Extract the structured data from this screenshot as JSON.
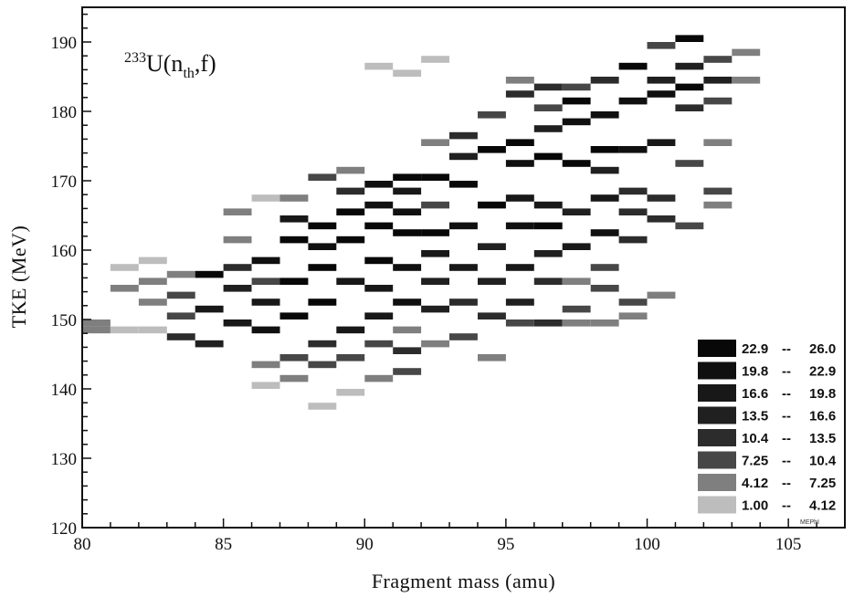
{
  "chart_data": {
    "type": "heatmap",
    "title": "233U(nth,f)",
    "title_parts": {
      "sup": "233",
      "base": "U(n",
      "sub": "th",
      "tail": ",f)"
    },
    "xlabel": "Fragment mass (amu)",
    "ylabel": "TKE (MeV)",
    "xlim": [
      80,
      107
    ],
    "ylim": [
      120,
      195
    ],
    "xticks": [
      80,
      85,
      90,
      95,
      100,
      105
    ],
    "yticks": [
      120,
      130,
      140,
      150,
      160,
      170,
      180,
      190
    ],
    "legend_placement": "bottom-right",
    "legend": [
      {
        "label_lo": "22.9",
        "label_hi": "26.0",
        "color": "#080808"
      },
      {
        "label_lo": "19.8",
        "label_hi": "22.9",
        "color": "#101010"
      },
      {
        "label_lo": "16.6",
        "label_hi": "19.8",
        "color": "#181818"
      },
      {
        "label_lo": "13.5",
        "label_hi": "16.6",
        "color": "#202020"
      },
      {
        "label_lo": "10.4",
        "label_hi": "13.5",
        "color": "#2c2c2c"
      },
      {
        "label_lo": "7.25",
        "label_hi": "10.4",
        "color": "#474747"
      },
      {
        "label_lo": "4.12",
        "label_hi": "7.25",
        "color": "#7f7f7f"
      },
      {
        "label_lo": "1.00",
        "label_hi": "4.12",
        "color": "#bdbdbd"
      }
    ],
    "legend_separator": "--",
    "credit": "MEPhI",
    "cell_width_amu": 1,
    "cell_height_mev": 1,
    "cells": [
      [
        80.5,
        149.5,
        2
      ],
      [
        80.5,
        148.5,
        2
      ],
      [
        81.5,
        148.5,
        1
      ],
      [
        81.5,
        154.5,
        2
      ],
      [
        81.5,
        157.5,
        1
      ],
      [
        82.5,
        148.5,
        1
      ],
      [
        82.5,
        152.5,
        2
      ],
      [
        82.5,
        155.5,
        2
      ],
      [
        82.5,
        158.5,
        1
      ],
      [
        83.5,
        147.5,
        4
      ],
      [
        83.5,
        150.5,
        3
      ],
      [
        83.5,
        153.5,
        3
      ],
      [
        83.5,
        156.5,
        2
      ],
      [
        84.5,
        151.5,
        6
      ],
      [
        84.5,
        156.5,
        8
      ],
      [
        84.5,
        146.5,
        5
      ],
      [
        85.5,
        149.5,
        6
      ],
      [
        85.5,
        154.5,
        5
      ],
      [
        85.5,
        157.5,
        4
      ],
      [
        85.5,
        161.5,
        2
      ],
      [
        85.5,
        165.5,
        2
      ],
      [
        86.5,
        148.5,
        7
      ],
      [
        86.5,
        152.5,
        6
      ],
      [
        86.5,
        158.5,
        7
      ],
      [
        86.5,
        155.5,
        3
      ],
      [
        86.5,
        143.5,
        2
      ],
      [
        86.5,
        140.5,
        1
      ],
      [
        86.5,
        167.5,
        1
      ],
      [
        87.5,
        150.5,
        8
      ],
      [
        87.5,
        155.5,
        8
      ],
      [
        87.5,
        161.5,
        8
      ],
      [
        87.5,
        164.5,
        6
      ],
      [
        87.5,
        144.5,
        3
      ],
      [
        87.5,
        141.5,
        2
      ],
      [
        87.5,
        167.5,
        2
      ],
      [
        88.5,
        152.5,
        8
      ],
      [
        88.5,
        157.5,
        8
      ],
      [
        88.5,
        163.5,
        8
      ],
      [
        88.5,
        160.5,
        7
      ],
      [
        88.5,
        146.5,
        4
      ],
      [
        88.5,
        143.5,
        3
      ],
      [
        88.5,
        170.5,
        3
      ],
      [
        88.5,
        137.5,
        1
      ],
      [
        89.5,
        148.5,
        6
      ],
      [
        89.5,
        155.5,
        6
      ],
      [
        89.5,
        161.5,
        8
      ],
      [
        89.5,
        165.5,
        8
      ],
      [
        89.5,
        168.5,
        4
      ],
      [
        89.5,
        144.5,
        3
      ],
      [
        89.5,
        139.5,
        1
      ],
      [
        89.5,
        171.5,
        2
      ],
      [
        90.5,
        150.5,
        6
      ],
      [
        90.5,
        154.5,
        6
      ],
      [
        90.5,
        158.5,
        8
      ],
      [
        90.5,
        163.5,
        8
      ],
      [
        90.5,
        166.5,
        7
      ],
      [
        90.5,
        169.5,
        7
      ],
      [
        90.5,
        146.5,
        3
      ],
      [
        90.5,
        141.5,
        2
      ],
      [
        90.5,
        186.5,
        1
      ],
      [
        91.5,
        152.5,
        7
      ],
      [
        91.5,
        157.5,
        7
      ],
      [
        91.5,
        162.5,
        8
      ],
      [
        91.5,
        165.5,
        7
      ],
      [
        91.5,
        168.5,
        6
      ],
      [
        91.5,
        170.5,
        8
      ],
      [
        91.5,
        145.5,
        4
      ],
      [
        91.5,
        142.5,
        3
      ],
      [
        91.5,
        148.5,
        2
      ],
      [
        91.5,
        185.5,
        1
      ],
      [
        92.5,
        151.5,
        5
      ],
      [
        92.5,
        155.5,
        5
      ],
      [
        92.5,
        159.5,
        6
      ],
      [
        92.5,
        162.5,
        8
      ],
      [
        92.5,
        170.5,
        8
      ],
      [
        92.5,
        166.5,
        3
      ],
      [
        92.5,
        175.5,
        2
      ],
      [
        92.5,
        146.5,
        2
      ],
      [
        92.5,
        187.5,
        1
      ],
      [
        93.5,
        157.5,
        6
      ],
      [
        93.5,
        163.5,
        7
      ],
      [
        93.5,
        169.5,
        8
      ],
      [
        93.5,
        173.5,
        5
      ],
      [
        93.5,
        176.5,
        4
      ],
      [
        93.5,
        147.5,
        3
      ],
      [
        93.5,
        152.5,
        4
      ],
      [
        94.5,
        150.5,
        4
      ],
      [
        94.5,
        155.5,
        5
      ],
      [
        94.5,
        160.5,
        5
      ],
      [
        94.5,
        166.5,
        8
      ],
      [
        94.5,
        174.5,
        8
      ],
      [
        94.5,
        179.5,
        3
      ],
      [
        94.5,
        144.5,
        2
      ],
      [
        95.5,
        152.5,
        5
      ],
      [
        95.5,
        157.5,
        6
      ],
      [
        95.5,
        163.5,
        7
      ],
      [
        95.5,
        167.5,
        6
      ],
      [
        95.5,
        172.5,
        7
      ],
      [
        95.5,
        175.5,
        8
      ],
      [
        95.5,
        182.5,
        4
      ],
      [
        95.5,
        184.5,
        2
      ],
      [
        95.5,
        149.5,
        3
      ],
      [
        96.5,
        149.5,
        4
      ],
      [
        96.5,
        155.5,
        4
      ],
      [
        96.5,
        159.5,
        5
      ],
      [
        96.5,
        163.5,
        8
      ],
      [
        96.5,
        166.5,
        6
      ],
      [
        96.5,
        173.5,
        8
      ],
      [
        96.5,
        177.5,
        5
      ],
      [
        96.5,
        180.5,
        3
      ],
      [
        96.5,
        183.5,
        4
      ],
      [
        97.5,
        151.5,
        3
      ],
      [
        97.5,
        155.5,
        2
      ],
      [
        97.5,
        160.5,
        6
      ],
      [
        97.5,
        165.5,
        5
      ],
      [
        97.5,
        172.5,
        8
      ],
      [
        97.5,
        178.5,
        7
      ],
      [
        97.5,
        181.5,
        8
      ],
      [
        97.5,
        183.5,
        3
      ],
      [
        97.5,
        149.5,
        2
      ],
      [
        98.5,
        149.5,
        2
      ],
      [
        98.5,
        154.5,
        3
      ],
      [
        98.5,
        162.5,
        7
      ],
      [
        98.5,
        167.5,
        6
      ],
      [
        98.5,
        171.5,
        5
      ],
      [
        98.5,
        174.5,
        8
      ],
      [
        98.5,
        179.5,
        7
      ],
      [
        98.5,
        184.5,
        4
      ],
      [
        98.5,
        157.5,
        3
      ],
      [
        99.5,
        150.5,
        2
      ],
      [
        99.5,
        152.5,
        3
      ],
      [
        99.5,
        161.5,
        4
      ],
      [
        99.5,
        165.5,
        4
      ],
      [
        99.5,
        168.5,
        4
      ],
      [
        99.5,
        174.5,
        7
      ],
      [
        99.5,
        181.5,
        7
      ],
      [
        99.5,
        186.5,
        8
      ],
      [
        100.5,
        153.5,
        2
      ],
      [
        100.5,
        164.5,
        4
      ],
      [
        100.5,
        167.5,
        4
      ],
      [
        100.5,
        175.5,
        6
      ],
      [
        100.5,
        182.5,
        7
      ],
      [
        100.5,
        184.5,
        5
      ],
      [
        100.5,
        189.5,
        3
      ],
      [
        101.5,
        163.5,
        3
      ],
      [
        101.5,
        172.5,
        3
      ],
      [
        101.5,
        180.5,
        4
      ],
      [
        101.5,
        183.5,
        8
      ],
      [
        101.5,
        186.5,
        5
      ],
      [
        101.5,
        190.5,
        8
      ],
      [
        102.5,
        166.5,
        2
      ],
      [
        102.5,
        168.5,
        3
      ],
      [
        102.5,
        175.5,
        2
      ],
      [
        102.5,
        181.5,
        3
      ],
      [
        102.5,
        184.5,
        5
      ],
      [
        102.5,
        187.5,
        3
      ],
      [
        103.5,
        188.5,
        2
      ],
      [
        103.5,
        184.5,
        2
      ]
    ]
  }
}
